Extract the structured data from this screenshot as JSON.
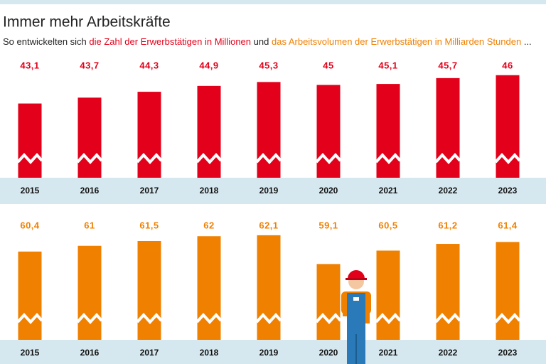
{
  "title": "Immer mehr Arbeitskräfte",
  "subtitle": [
    "So entwickelten sich",
    "die Zahl der Erwerbstätigen in Millionen",
    "und",
    "das Arbeitsvolumen der Erwerbstätigen in Milliarden Stunden",
    "..."
  ],
  "chart_data": [
    {
      "type": "bar",
      "color": "#e2001a",
      "categories": [
        "2015",
        "2016",
        "2017",
        "2018",
        "2019",
        "2020",
        "2021",
        "2022",
        "2023"
      ],
      "values": [
        43.1,
        43.7,
        44.3,
        44.9,
        45.3,
        45,
        45.1,
        45.7,
        46
      ],
      "value_labels": [
        "43,1",
        "43,7",
        "44,3",
        "44,9",
        "45,3",
        "45",
        "45,1",
        "45,7",
        "46"
      ],
      "ylim": [
        35.5,
        47
      ]
    },
    {
      "type": "bar",
      "color": "#f08000",
      "categories": [
        "2015",
        "2016",
        "2017",
        "2018",
        "2019",
        "2020",
        "2021",
        "2022",
        "2023"
      ],
      "values": [
        60.4,
        61,
        61.5,
        62,
        62.1,
        59.1,
        60.5,
        61.2,
        61.4
      ],
      "value_labels": [
        "60,4",
        "61",
        "61,5",
        "62",
        "62,1",
        "59,1",
        "60,5",
        "61,2",
        "61,4"
      ],
      "ylim": [
        51.2,
        63.5
      ]
    }
  ]
}
